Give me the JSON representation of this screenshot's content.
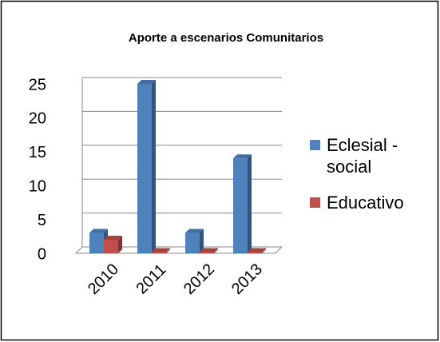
{
  "chart_data": {
    "type": "bar",
    "title": "Aporte a escenarios Comunitarios",
    "categories": [
      "2010",
      "2011",
      "2012",
      "2013"
    ],
    "series": [
      {
        "name": "Eclesial - social",
        "color": "#4f81bd",
        "values": [
          3,
          25,
          3,
          14
        ]
      },
      {
        "name": "Educativo",
        "color": "#c0504d",
        "values": [
          2,
          0,
          0,
          0
        ]
      }
    ],
    "ylim": [
      0,
      25
    ],
    "yticks": [
      0,
      5,
      10,
      15,
      20,
      25
    ],
    "grid": true,
    "legend": "right"
  }
}
